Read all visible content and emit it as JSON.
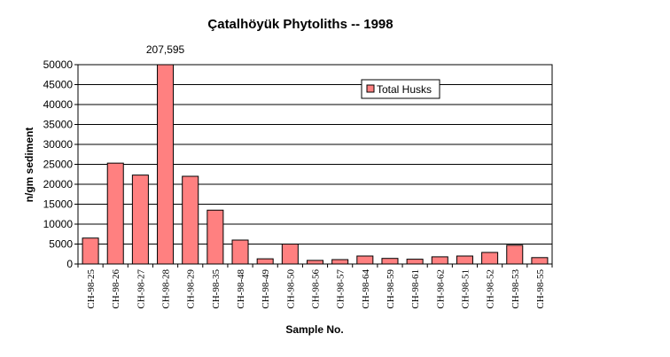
{
  "chart_data": {
    "type": "bar",
    "title": "Çatalhöyük Phytoliths -- 1998",
    "x_label": "Sample No.",
    "y_label": "n/gm sediment",
    "categories": [
      "CH-98-25",
      "CH-98-26",
      "CH-98-27",
      "CH-98-28",
      "CH-98-29",
      "CH-98-35",
      "CH-98-48",
      "CH-98-49",
      "CH-98-50",
      "CH-98-56",
      "CH-98-57",
      "CH-98-64",
      "CH-98-59",
      "CH-98-61",
      "CH-98-62",
      "CH-98-51",
      "CH-98-52",
      "CH-98-53",
      "CH-98-55"
    ],
    "series": [
      {
        "name": "Total Husks",
        "color": "#ff8080",
        "values": [
          6500,
          25300,
          22300,
          207595,
          22000,
          13500,
          6000,
          1300,
          5000,
          900,
          1100,
          2000,
          1400,
          1200,
          1800,
          2000,
          2900,
          4700,
          1600
        ],
        "value_labels": [
          null,
          null,
          null,
          "207,595",
          null,
          null,
          null,
          null,
          null,
          null,
          null,
          null,
          null,
          null,
          null,
          null,
          null,
          null,
          null
        ]
      }
    ],
    "ylim": [
      0,
      50000
    ],
    "yticks": [
      0,
      5000,
      10000,
      15000,
      20000,
      25000,
      30000,
      35000,
      40000,
      45000,
      50000
    ],
    "grid": true,
    "legend": "upper right"
  }
}
